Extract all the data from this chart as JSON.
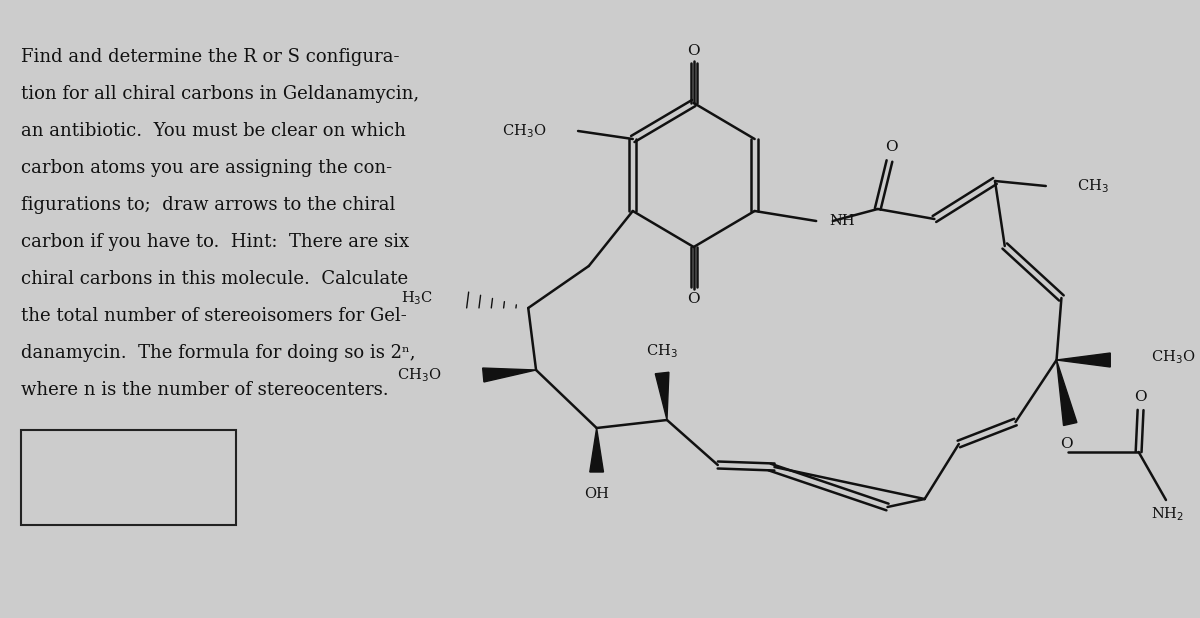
{
  "background_color": "#cccccc",
  "text_color": "#111111",
  "text_lines": [
    "Find and determine the R or S configura-",
    "tion for all chiral carbons in Geldanamycin,",
    "an antibiotic.  You must be clear on which",
    "carbon atoms you are assigning the con-",
    "figurations to;  draw arrows to the chiral",
    "carbon if you have to.  Hint:  There are six",
    "chiral carbons in this molecule.  Calculate",
    "the total number of stereoisomers for Gel-",
    "danamycin.  The formula for doing so is 2ⁿ,",
    "where n is the number of stereocenters."
  ],
  "font_size_text": 13.0,
  "lw": 1.8,
  "col": "#111111"
}
